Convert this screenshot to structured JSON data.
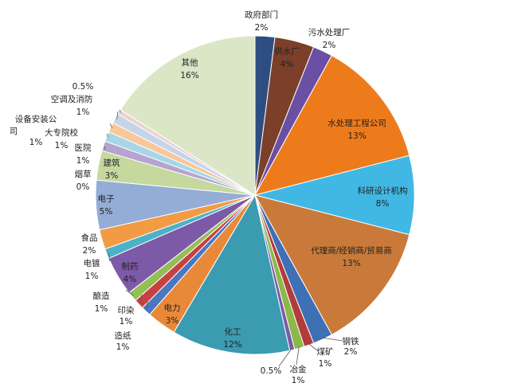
{
  "chart_data": {
    "type": "pie",
    "title": "",
    "slices": [
      {
        "name": "政府部门",
        "value": 2,
        "label": "2%",
        "color": "#2e4e82"
      },
      {
        "name": "供水厂",
        "value": 4,
        "label": "4%",
        "color": "#7b3f2a"
      },
      {
        "name": "污水处理厂",
        "value": 2,
        "label": "2%",
        "color": "#6a4fa5"
      },
      {
        "name": "水处理工程公司",
        "value": 13,
        "label": "13%",
        "color": "#ee7b1b"
      },
      {
        "name": "科研设计机构",
        "value": 8,
        "label": "8%",
        "color": "#41b8e4"
      },
      {
        "name": "代理商/经销商/贸易商",
        "value": 13,
        "label": "13%",
        "color": "#c97a3a"
      },
      {
        "name": "钢铁",
        "value": 2,
        "label": "2%",
        "color": "#3f6fb5"
      },
      {
        "name": "煤矿",
        "value": 1,
        "label": "1%",
        "color": "#b23b3b"
      },
      {
        "name": "冶金",
        "value": 1,
        "label": "1%",
        "color": "#8cb84a"
      },
      {
        "name": "0.5%",
        "value": 0.5,
        "label": "",
        "color": "#7a5aa6"
      },
      {
        "name": "化工",
        "value": 12,
        "label": "12%",
        "color": "#3b9bb0"
      },
      {
        "name": "电力",
        "value": 3,
        "label": "3%",
        "color": "#e8893a"
      },
      {
        "name": "造纸",
        "value": 1,
        "label": "1%",
        "color": "#4a78c0"
      },
      {
        "name": "印染",
        "value": 1,
        "label": "1%",
        "color": "#c94040"
      },
      {
        "name": "酿造",
        "value": 1,
        "label": "1%",
        "color": "#93bf56"
      },
      {
        "name": "制药",
        "value": 4,
        "label": "4%",
        "color": "#7d5aa8"
      },
      {
        "name": "电镀",
        "value": 1,
        "label": "1%",
        "color": "#4bb2c9"
      },
      {
        "name": "食品",
        "value": 2,
        "label": "2%",
        "color": "#f39a45"
      },
      {
        "name": "电子",
        "value": 5,
        "label": "5%",
        "color": "#93add6"
      },
      {
        "name": "烟草",
        "value": 0,
        "label": "0%",
        "color": "#d98e8b"
      },
      {
        "name": "建筑",
        "value": 3,
        "label": "3%",
        "color": "#c5d89e"
      },
      {
        "name": "医院",
        "value": 1,
        "label": "1%",
        "color": "#b6a4cf"
      },
      {
        "name": "大专院校",
        "value": 1,
        "label": "1%",
        "color": "#a7d7e6"
      },
      {
        "name": "设备安装公司",
        "value": 1,
        "label": "1%",
        "color": "#f8c79b"
      },
      {
        "name": "空调及消防",
        "value": 1,
        "label": "1%",
        "color": "#c6d4ea"
      },
      {
        "name": "0.5%",
        "value": 0.5,
        "label": "",
        "color": "#ead2d2"
      },
      {
        "name": "其他",
        "value": 16,
        "label": "16%",
        "color": "#dbe6c6"
      }
    ]
  }
}
